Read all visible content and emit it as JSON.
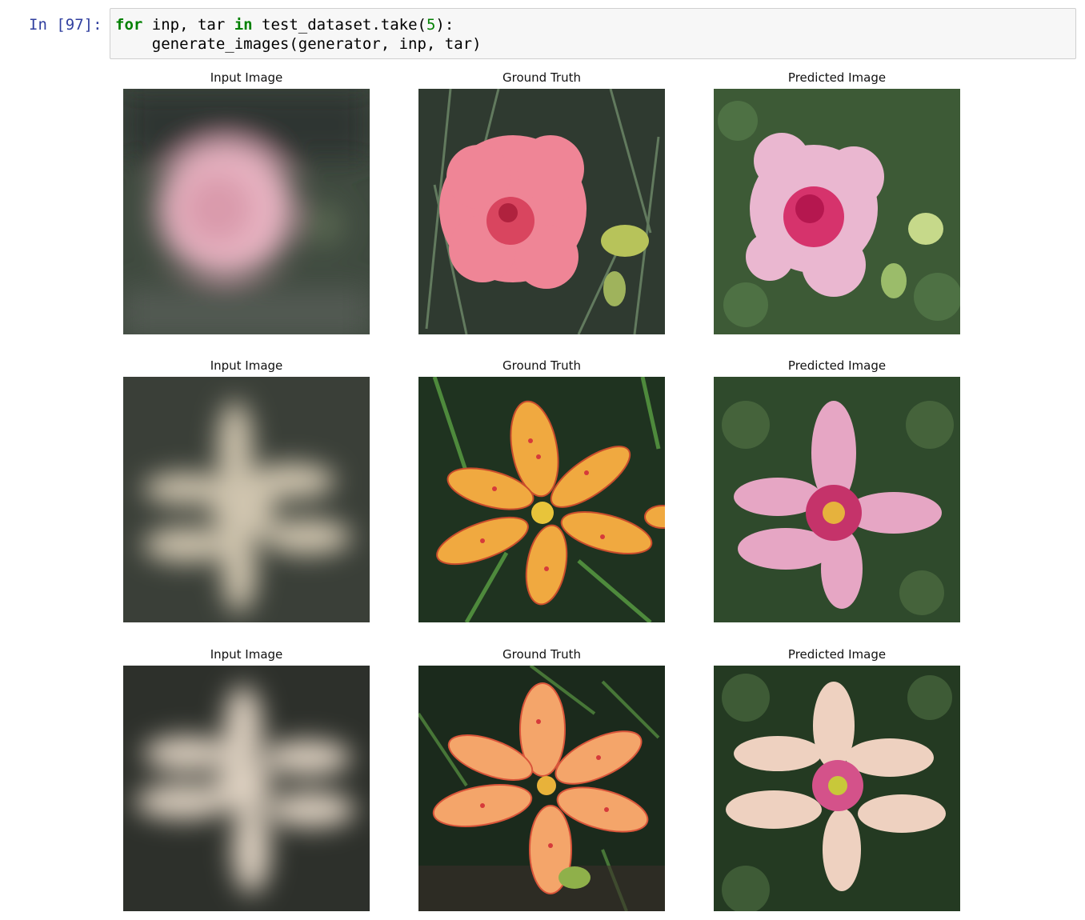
{
  "cell": {
    "prompt": "In [97]:",
    "code_line1": {
      "kw1": "for",
      "t1": " inp, tar ",
      "kw2": "in",
      "t2": " test_dataset.take(",
      "num": "5",
      "t3": "):"
    },
    "code_line2": "    generate_images(generator, inp, tar)"
  },
  "figure": {
    "titles": [
      "Input Image",
      "Ground Truth",
      "Predicted Image"
    ],
    "rows": [
      {
        "subject": "pink carnation"
      },
      {
        "subject": "spotted orange lily"
      },
      {
        "subject": "spotted orange lily"
      }
    ]
  }
}
